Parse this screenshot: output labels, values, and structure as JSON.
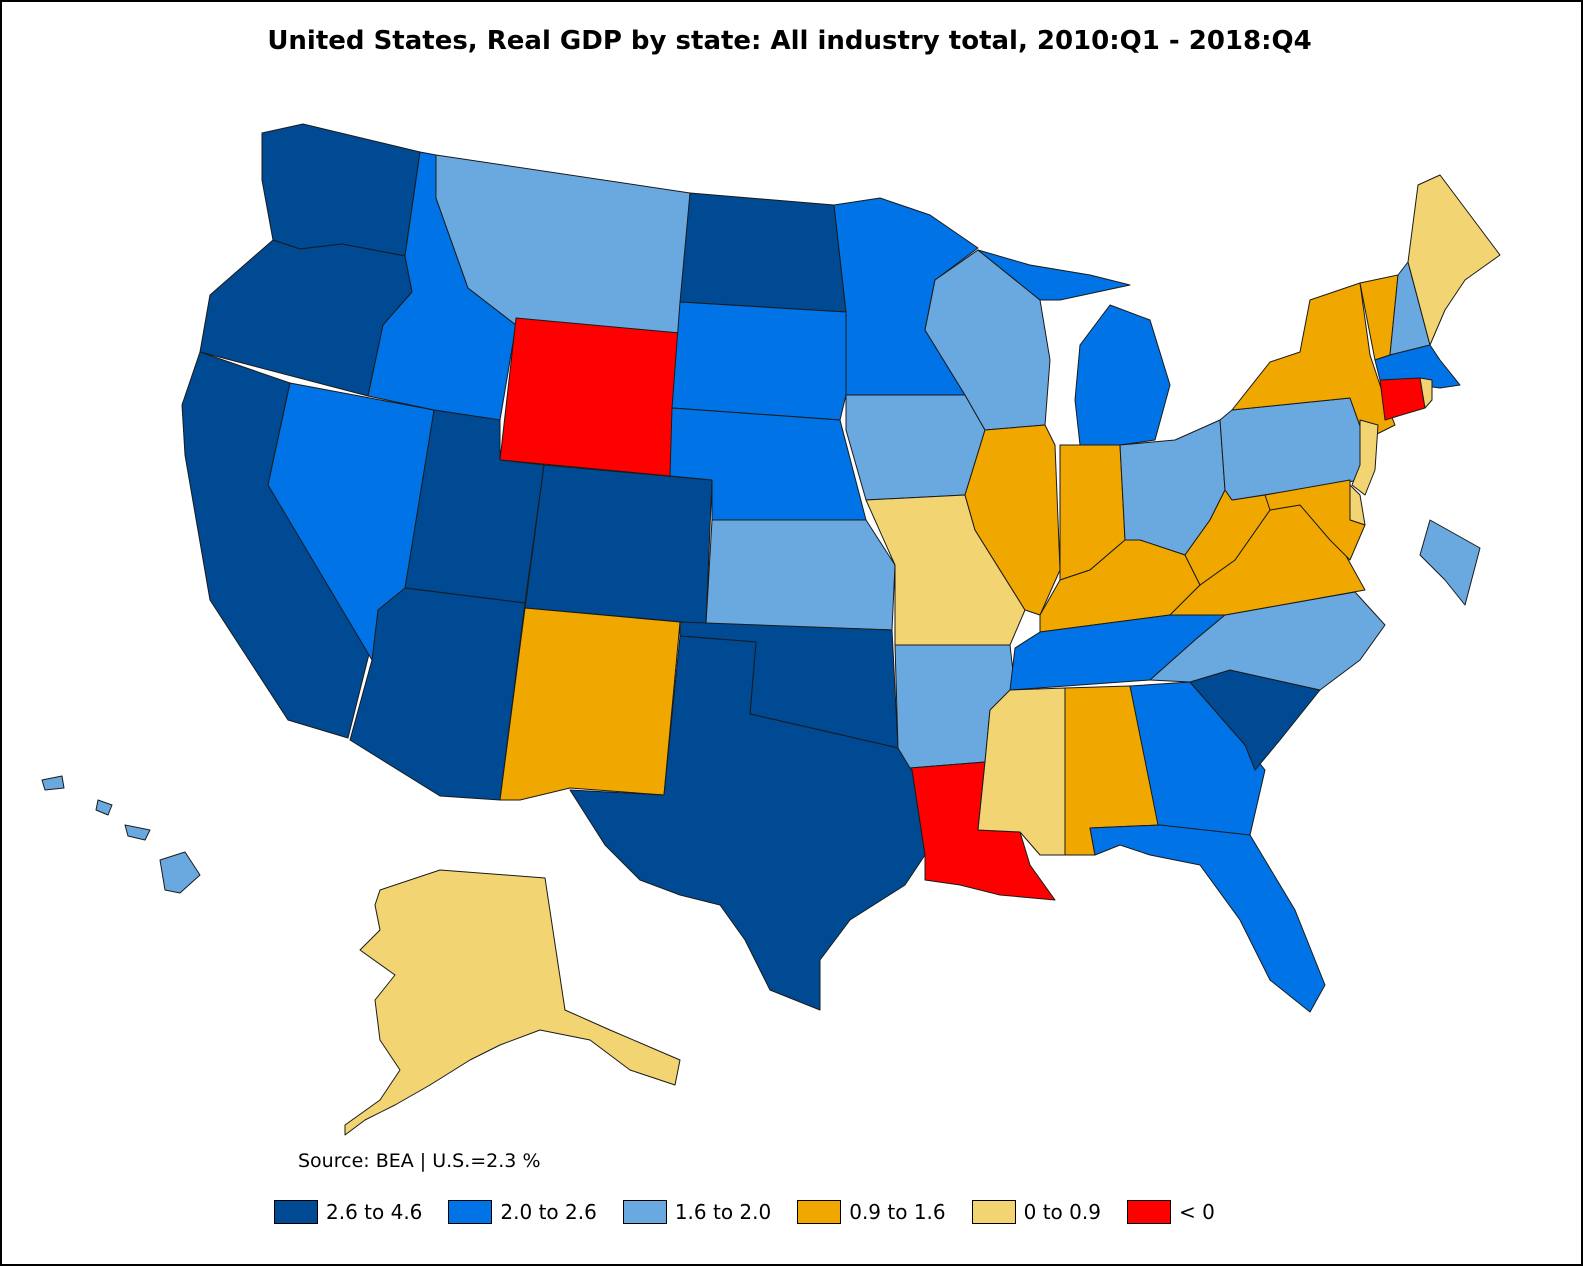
{
  "title": "United States, Real GDP by state: All industry total, 2010:Q1 - 2018:Q4",
  "source": "Source: BEA | U.S.=2.3 %",
  "legend": [
    {
      "label": "2.6 to 4.6",
      "color": "#004a93",
      "key": "c1"
    },
    {
      "label": "2.0 to 2.6",
      "color": "#0073e6",
      "key": "c2"
    },
    {
      "label": "1.6 to 2.0",
      "color": "#6aa9e0",
      "key": "c3"
    },
    {
      "label": "0.9 to 1.6",
      "color": "#f0a800",
      "key": "c4"
    },
    {
      "label": "0 to 0.9",
      "color": "#f2d472",
      "key": "c5"
    },
    {
      "label": "< 0",
      "color": "#ff0000",
      "key": "c6"
    }
  ],
  "state_classes": {
    "WA": "c1",
    "OR": "c1",
    "CA": "c1",
    "NV": "c2",
    "ID": "c2",
    "MT": "c3",
    "WY": "c6",
    "UT": "c1",
    "AZ": "c1",
    "CO": "c1",
    "NM": "c4",
    "ND": "c1",
    "SD": "c2",
    "NE": "c2",
    "KS": "c3",
    "OK": "c1",
    "TX": "c1",
    "MN": "c2",
    "IA": "c3",
    "MO": "c5",
    "AR": "c3",
    "LA": "c6",
    "WI": "c3",
    "IL": "c4",
    "MI": "c2",
    "IN": "c4",
    "OH": "c3",
    "KY": "c4",
    "TN": "c2",
    "MS": "c5",
    "AL": "c4",
    "GA": "c2",
    "FL": "c2",
    "SC": "c1",
    "NC": "c3",
    "VA": "c4",
    "WV": "c4",
    "PA": "c3",
    "NY": "c4",
    "VT": "c4",
    "NH": "c3",
    "ME": "c5",
    "MA": "c2",
    "RI": "c5",
    "CT": "c6",
    "NJ": "c5",
    "DE": "c5",
    "MD": "c4",
    "DC": "c3",
    "AK": "c5",
    "HI": "c3"
  }
}
